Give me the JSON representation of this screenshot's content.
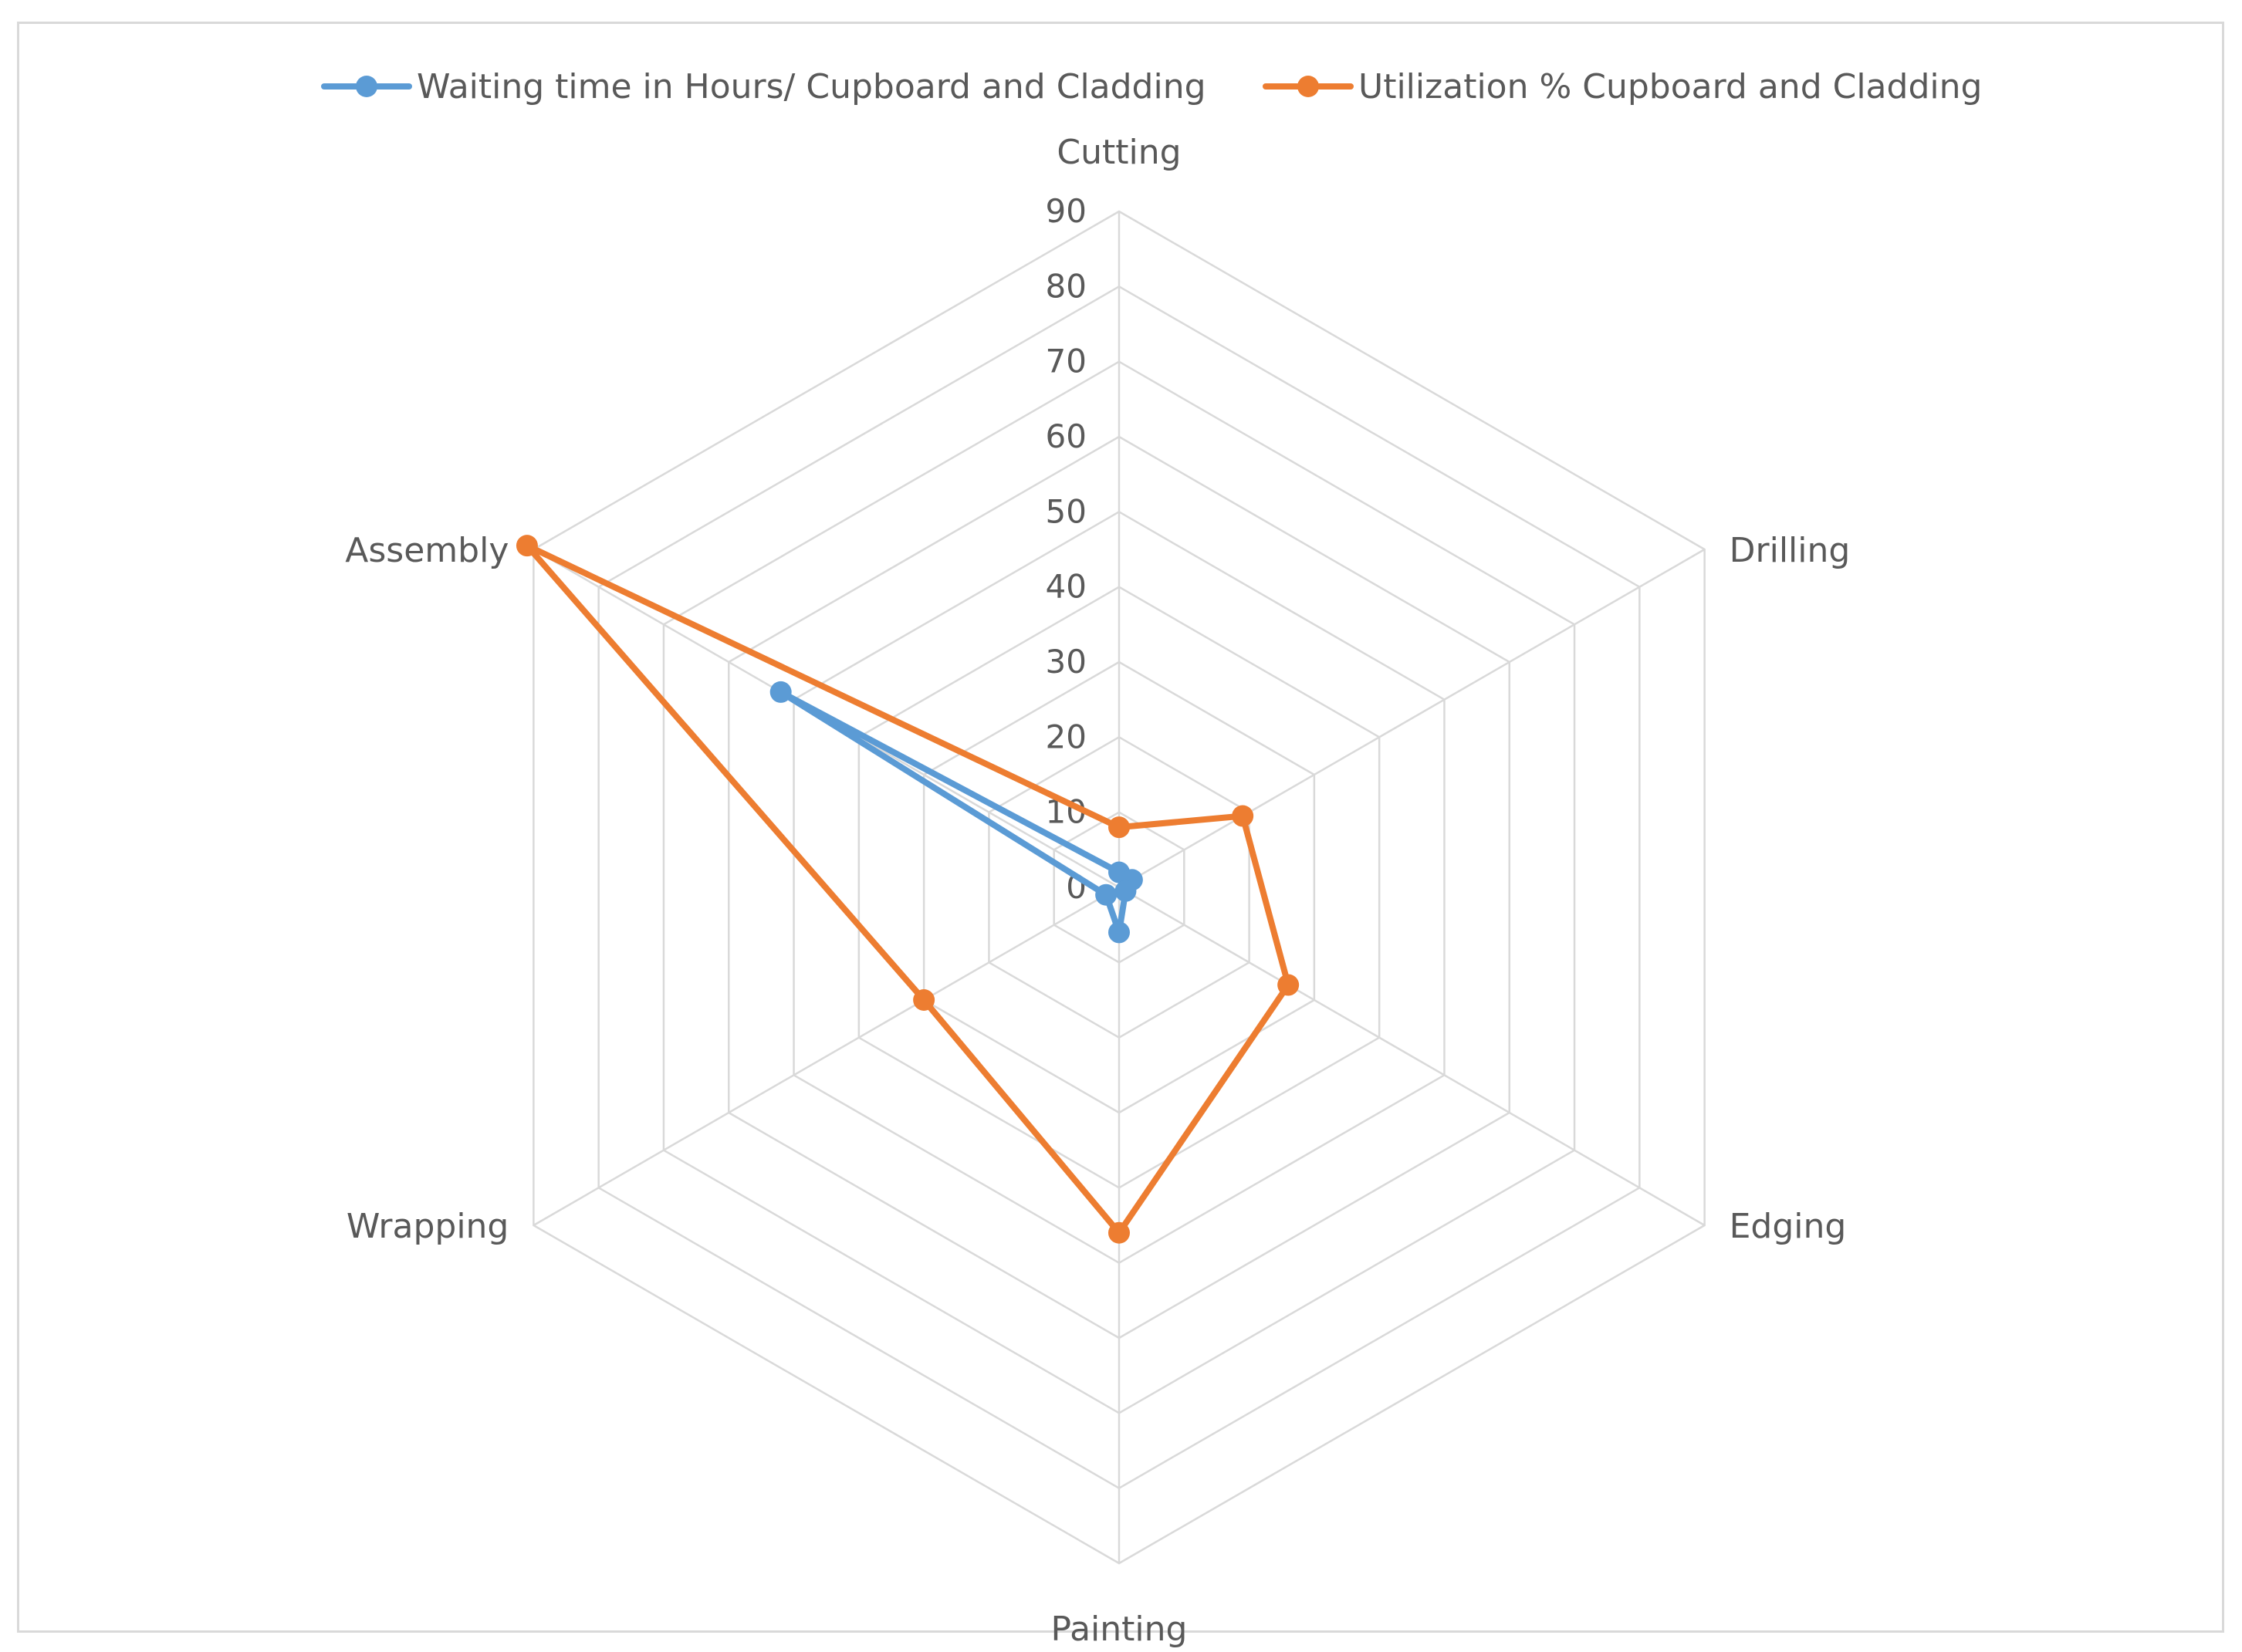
{
  "chart_data": {
    "type": "radar",
    "categories": [
      "Cutting",
      "Drilling",
      "Edging",
      "Painting",
      "Wrapping",
      "Assembly"
    ],
    "series": [
      {
        "name": "Waiting time in Hours/ Cupboard and Cladding",
        "color": "#5b9bd5",
        "values": [
          2,
          2,
          1,
          6,
          2,
          52
        ]
      },
      {
        "name": "Utilization % Cupboard and Cladding",
        "color": "#ed7d31",
        "values": [
          8,
          19,
          26,
          46,
          30,
          91
        ]
      }
    ],
    "rlim": [
      0,
      90
    ],
    "ticks": [
      "0",
      "10",
      "20",
      "30",
      "40",
      "50",
      "60",
      "70",
      "80",
      "90"
    ],
    "grid": true,
    "grid_color": "#d9d9d9",
    "legend_position": "top"
  }
}
